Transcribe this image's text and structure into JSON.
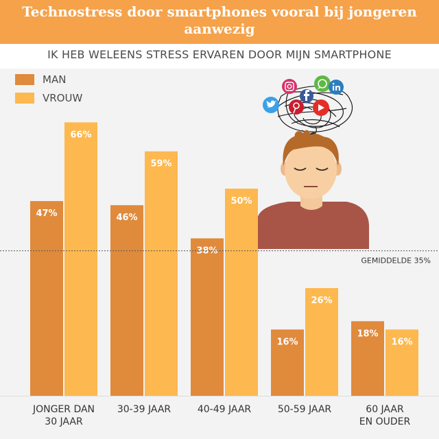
{
  "title": "Technostress door smartphones vooral bij jongeren aanwezig",
  "subtitle": "IK HEB WELEENS STRESS ERVAREN DOOR MIJN SMARTPHONE",
  "colors": {
    "man": "#e08a3c",
    "vrouw": "#fdb84f",
    "title_bg": "#f5a24a",
    "chart_bg": "#f3f3f3"
  },
  "chart_data": {
    "type": "bar",
    "categories": [
      [
        "JONGER DAN",
        "30 JAAR"
      ],
      [
        "30-39 JAAR"
      ],
      [
        "40-49 JAAR"
      ],
      [
        "50-59 JAAR"
      ],
      [
        "60 JAAR",
        "EN OUDER"
      ]
    ],
    "series": [
      {
        "name": "MAN",
        "values": [
          47,
          46,
          38,
          16,
          18
        ],
        "labels": [
          "47%",
          "46%",
          "38%",
          "16%",
          "18%"
        ]
      },
      {
        "name": "VROUW",
        "values": [
          66,
          59,
          50,
          26,
          16
        ],
        "labels": [
          "66%",
          "59%",
          "50%",
          "26%",
          "16%"
        ]
      }
    ],
    "average": {
      "label": "GEMIDDELDE",
      "value": 35,
      "value_label": "35%"
    },
    "ylim": [
      0,
      100
    ],
    "legend": "top-left",
    "grid": false,
    "illustration_icons": [
      "twitter-icon",
      "instagram-icon",
      "whatsapp-icon",
      "linkedin-icon",
      "pinterest-icon",
      "youtube-icon",
      "facebook-icon"
    ]
  }
}
